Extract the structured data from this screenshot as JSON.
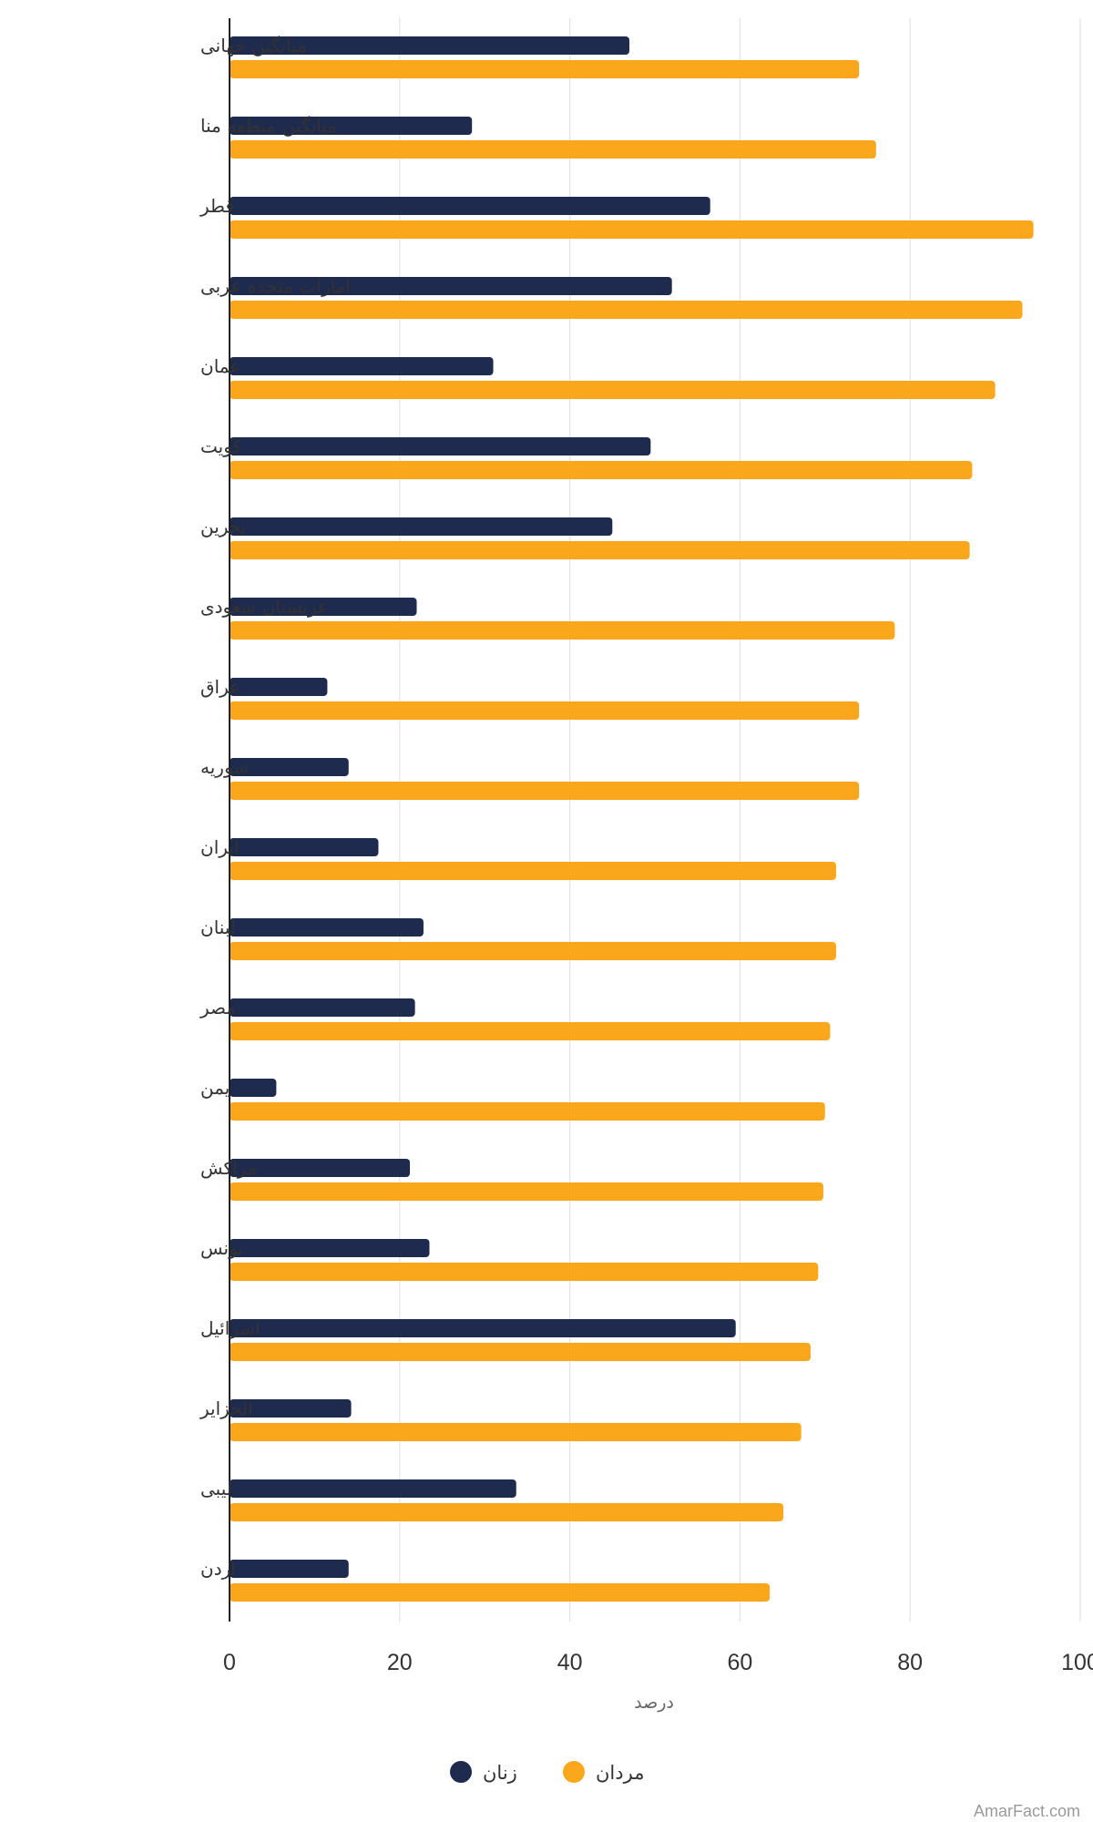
{
  "chart_data": {
    "type": "bar",
    "orientation": "horizontal",
    "categories": [
      "میانگین جهانی",
      "میانگین منطقه منا",
      "قطر",
      "امارات متحده عربی",
      "عمان",
      "کویت",
      "بحرین",
      "عربستان سعودی",
      "عراق",
      "سوریه",
      "ایران",
      "لبنان",
      "مصر",
      "یمن",
      "مراکش",
      "تونس",
      "اسرائیل",
      "الجزایر",
      "لیبی",
      "اردن"
    ],
    "series": [
      {
        "name": "زنان",
        "color": "#1e2a4e",
        "values": [
          47,
          28.5,
          56.5,
          52,
          31,
          49.5,
          45,
          22,
          11.5,
          14,
          17.5,
          22.8,
          21.8,
          5.5,
          21.2,
          23.5,
          59.5,
          14.3,
          33.7,
          14
        ]
      },
      {
        "name": "مردان",
        "color": "#fba71b",
        "values": [
          74,
          76,
          94.5,
          93.2,
          90,
          87.3,
          87,
          78.2,
          74,
          74,
          71.3,
          71.3,
          70.6,
          70,
          69.8,
          69.2,
          68.3,
          67.2,
          65.1,
          63.5
        ]
      }
    ],
    "xlim": [
      0,
      100
    ],
    "xticks": [
      "0",
      "20",
      "40",
      "60",
      "80",
      "100"
    ],
    "xlabel": "درصد",
    "ylabel": "",
    "title": "",
    "grid": true,
    "legend_position": "bottom-center"
  },
  "legend": {
    "items": [
      {
        "label": "زنان",
        "color": "#1e2a4e"
      },
      {
        "label": "مردان",
        "color": "#fba71b"
      }
    ]
  },
  "watermark": "AmarFact.com"
}
